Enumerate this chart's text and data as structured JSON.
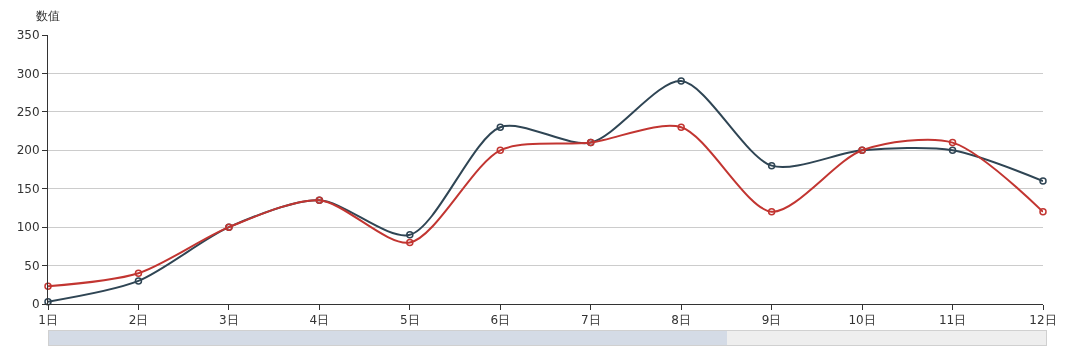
{
  "chart_data": {
    "type": "line",
    "ylabel": "数值",
    "categories": [
      "1日",
      "2日",
      "3日",
      "4日",
      "5日",
      "6日",
      "7日",
      "8日",
      "9日",
      "10日",
      "11日",
      "12日"
    ],
    "series": [
      {
        "color": "#2f4554",
        "values": [
          3,
          30,
          100,
          135,
          90,
          230,
          210,
          290,
          180,
          200,
          200,
          160
        ]
      },
      {
        "color": "#c23531",
        "values": [
          23,
          40,
          100,
          135,
          80,
          200,
          210,
          230,
          120,
          200,
          210,
          120
        ]
      }
    ],
    "ylim": [
      0,
      350
    ],
    "yticks": [
      0,
      50,
      100,
      150,
      200,
      250,
      300,
      350
    ],
    "grid": "y",
    "marker": "circle",
    "line_style": "solid"
  }
}
